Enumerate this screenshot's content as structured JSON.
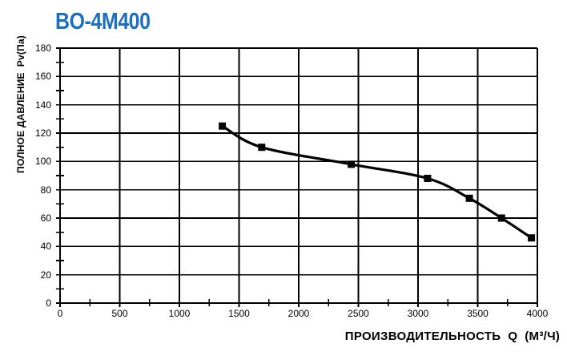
{
  "chart_data": {
    "type": "line",
    "title": "BO-4M400",
    "title_color": "#1c6fc0",
    "xlabel": "ПРОИЗВОДИТЕЛЬНОСТЬ  Q  (М³/Ч)",
    "ylabel": "ПОЛНОЕ ДАВЛЕНИЕ  Pv(Па)",
    "xlim": [
      0,
      4000
    ],
    "ylim": [
      0,
      180
    ],
    "x_tick_step": 500,
    "x_minor_tick_step": 250,
    "y_tick_step": 20,
    "y_minor_tick_step": 10,
    "grid": true,
    "legend": "none",
    "line_color": "#000000",
    "marker": "filled-square",
    "series": [
      {
        "name": "BO-4M400 pressure curve",
        "x": [
          1360,
          1690,
          2440,
          3080,
          3430,
          3700,
          3950
        ],
        "y": [
          125,
          110,
          98,
          88,
          74,
          60,
          46
        ]
      }
    ]
  }
}
